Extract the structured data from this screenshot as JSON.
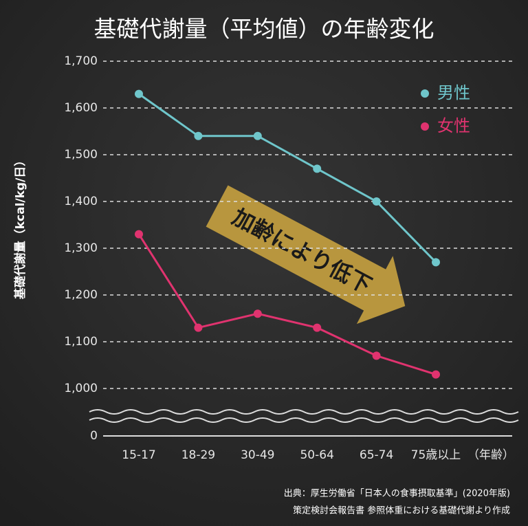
{
  "chart_data": {
    "type": "line",
    "title": "基礎代謝量（平均値）の年齢変化",
    "y_label": "基礎代謝量（kcal/kg/日）",
    "x_label": "（年齢）",
    "categories": [
      "15-17",
      "18-29",
      "30-49",
      "50-64",
      "65-74",
      "75歳以上"
    ],
    "series": [
      {
        "name": "男性",
        "color": "#6fc6cb",
        "values": [
          1630,
          1540,
          1540,
          1470,
          1400,
          1270
        ]
      },
      {
        "name": "女性",
        "color": "#e0336f",
        "values": [
          1330,
          1130,
          1160,
          1130,
          1070,
          1030
        ]
      }
    ],
    "ylim": [
      0,
      1700
    ],
    "axis_break": [
      0,
      1000
    ],
    "yticks": [
      0,
      {
        "value": 1000,
        "label": "1,000"
      },
      {
        "value": 1100,
        "label": "1,100"
      },
      {
        "value": 1200,
        "label": "1,200"
      },
      {
        "value": 1300,
        "label": "1,300"
      },
      {
        "value": 1400,
        "label": "1,400"
      },
      {
        "value": 1500,
        "label": "1,500"
      },
      {
        "value": 1600,
        "label": "1,600"
      },
      {
        "value": 1700,
        "label": "1,700"
      }
    ],
    "grid": true,
    "annotation": "加齢により低下",
    "source": [
      "出典：厚生労働省「日本人の食事摂取基準」(2020年版)",
      "策定検討会報告書 参照体重における基礎代謝より作成"
    ]
  }
}
